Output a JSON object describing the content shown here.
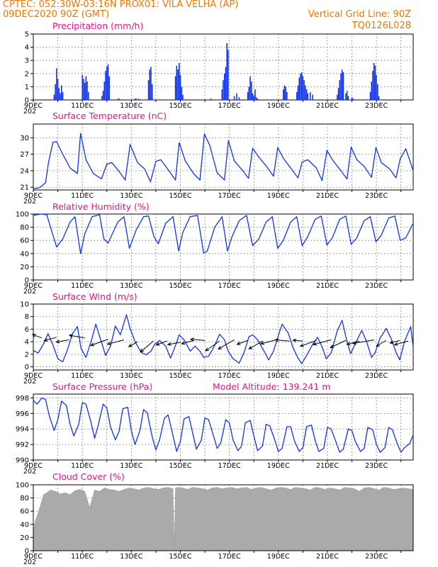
{
  "header": {
    "line1": "CPTEC:   052:30W-03:16N   PROX01: VILA VELHA (AP)",
    "line2": "09DEC2020 90Z (GMT)",
    "grid_note": "Vertical Grid Line: 90Z",
    "code": "TQ0126L028",
    "year_stub": "202"
  },
  "colors": {
    "header": "#ee7700",
    "title": "#ee1188",
    "series": "#1133ee",
    "cloud": "#aaaaaa"
  },
  "chart_data": [
    {
      "type": "bar",
      "title": "Precipitation (mm/h)",
      "ylim": [
        0,
        5
      ],
      "yticks": [
        0,
        1,
        2,
        3,
        4,
        5
      ],
      "xticks": [
        "9DEC",
        "11DEC",
        "13DEC",
        "15DEC",
        "17DEC",
        "19DEC",
        "21DEC",
        "23DEC"
      ],
      "xlim": [
        0,
        15.5
      ],
      "x": [
        0.85,
        0.9,
        0.95,
        1.0,
        1.05,
        1.1,
        1.15,
        1.2,
        2.0,
        2.05,
        2.1,
        2.15,
        2.2,
        2.25,
        2.8,
        2.85,
        2.9,
        2.95,
        3.0,
        3.05,
        3.1,
        3.45,
        3.5,
        4.15,
        4.2,
        4.3,
        4.7,
        4.75,
        4.8,
        4.85,
        5.8,
        5.85,
        5.9,
        5.95,
        6.0,
        6.05,
        6.1,
        7.25,
        7.7,
        7.75,
        7.8,
        7.85,
        7.9,
        7.95,
        8.2,
        8.3,
        8.4,
        8.75,
        8.8,
        8.85,
        8.9,
        8.95,
        9.0,
        9.05,
        9.1,
        9.15,
        10.2,
        10.25,
        10.3,
        10.35,
        10.75,
        10.8,
        10.85,
        10.9,
        10.95,
        11.0,
        11.05,
        11.1,
        11.15,
        11.2,
        11.3,
        11.4,
        12.4,
        12.45,
        12.5,
        12.55,
        12.6,
        12.65,
        12.75,
        12.8,
        12.85,
        13.0,
        13.05,
        13.75,
        13.8,
        13.85,
        13.9,
        13.95,
        14.0,
        14.05,
        14.1
      ],
      "values": [
        0.4,
        1.2,
        2.4,
        1.6,
        0.9,
        0.5,
        1.1,
        0.6,
        1.9,
        1.6,
        1.3,
        1.8,
        1.4,
        0.6,
        0.3,
        0.7,
        1.4,
        2.2,
        2.5,
        2.7,
        1.8,
        0.1,
        0.1,
        0.1,
        0.1,
        0.1,
        1.5,
        2.3,
        2.5,
        1.2,
        1.8,
        2.6,
        2.3,
        2.8,
        1.9,
        1.0,
        0.4,
        0.1,
        0.8,
        1.5,
        2.0,
        2.5,
        4.3,
        3.8,
        0.3,
        0.5,
        0.2,
        0.6,
        1.0,
        1.8,
        1.4,
        0.5,
        0.3,
        0.8,
        0.2,
        0.1,
        0.8,
        1.1,
        1.0,
        0.6,
        0.6,
        1.1,
        1.7,
        2.0,
        2.1,
        1.8,
        1.5,
        1.1,
        0.8,
        0.5,
        0.6,
        0.4,
        0.4,
        0.9,
        1.5,
        2.0,
        2.3,
        2.1,
        0.5,
        0.7,
        0.3,
        0.2,
        0.1,
        0.6,
        1.4,
        2.2,
        2.8,
        2.6,
        1.9,
        1.2,
        0.3
      ]
    },
    {
      "type": "line",
      "title": "Surface Temperature (nC)",
      "ylim": [
        20.5,
        32.5
      ],
      "yticks": [
        21,
        24,
        27,
        30
      ],
      "xticks": [
        "9DEC",
        "11DEC",
        "13DEC",
        "15DEC",
        "17DEC",
        "19DEC",
        "21DEC",
        "23DEC"
      ],
      "xlim": [
        0,
        15.5
      ],
      "x": [
        0,
        0.25,
        0.5,
        0.62,
        0.8,
        0.95,
        1.2,
        1.5,
        1.8,
        1.93,
        2.15,
        2.45,
        2.78,
        3.0,
        3.2,
        3.48,
        3.75,
        3.95,
        4.25,
        4.55,
        4.78,
        5.0,
        5.2,
        5.45,
        5.8,
        5.95,
        6.2,
        6.55,
        6.8,
        6.98,
        7.2,
        7.5,
        7.8,
        7.96,
        8.2,
        8.55,
        8.78,
        8.95,
        9.2,
        9.55,
        9.8,
        9.97,
        10.2,
        10.5,
        10.8,
        10.97,
        11.2,
        11.55,
        11.78,
        11.98,
        12.2,
        12.55,
        12.8,
        12.97,
        13.2,
        13.5,
        13.8,
        13.98,
        14.2,
        14.55,
        14.8,
        14.97,
        15.2,
        15.5
      ],
      "values": [
        20.7,
        20.9,
        21.8,
        25.5,
        29.2,
        29.3,
        27.0,
        24.5,
        23.5,
        30.8,
        26.0,
        23.5,
        22.5,
        25.2,
        25.5,
        24.0,
        22.3,
        28.8,
        25.5,
        24.3,
        22.0,
        25.7,
        26.0,
        24.5,
        22.3,
        29.1,
        25.8,
        23.4,
        22.3,
        30.7,
        28.6,
        23.6,
        22.3,
        29.5,
        25.8,
        24.0,
        22.6,
        28.1,
        26.5,
        24.6,
        23.0,
        28.2,
        26.3,
        24.5,
        22.7,
        25.6,
        26.0,
        24.5,
        22.2,
        27.7,
        26.0,
        24.0,
        22.5,
        28.3,
        26.0,
        24.8,
        22.8,
        28.2,
        25.5,
        24.3,
        22.7,
        26.2,
        28.0,
        24.0
      ]
    },
    {
      "type": "line",
      "title": "Relative Humidity (%)",
      "ylim": [
        0,
        100
      ],
      "yticks": [
        0,
        20,
        40,
        60,
        80,
        100
      ],
      "xticks": [
        "9DEC",
        "11DEC",
        "13DEC",
        "15DEC",
        "17DEC",
        "19DEC",
        "21DEC",
        "23DEC"
      ],
      "xlim": [
        0,
        15.5
      ],
      "x": [
        0,
        0.3,
        0.55,
        0.8,
        0.95,
        1.2,
        1.5,
        1.7,
        1.93,
        2.1,
        2.4,
        2.7,
        2.88,
        3.05,
        3.25,
        3.45,
        3.7,
        3.92,
        4.2,
        4.5,
        4.7,
        4.92,
        5.1,
        5.4,
        5.7,
        5.93,
        6.1,
        6.4,
        6.7,
        6.95,
        7.1,
        7.4,
        7.7,
        7.92,
        8.1,
        8.4,
        8.7,
        8.95,
        9.2,
        9.5,
        9.75,
        9.97,
        10.2,
        10.5,
        10.75,
        10.97,
        11.2,
        11.5,
        11.75,
        11.98,
        12.2,
        12.5,
        12.75,
        12.97,
        13.2,
        13.5,
        13.75,
        13.98,
        14.2,
        14.5,
        14.75,
        14.97,
        15.2,
        15.5
      ],
      "values": [
        98,
        100,
        99,
        68,
        50,
        62,
        88,
        96,
        40,
        70,
        96,
        99,
        62,
        56,
        72,
        88,
        96,
        48,
        76,
        96,
        97,
        66,
        55,
        86,
        96,
        44,
        72,
        96,
        98,
        41,
        44,
        80,
        96,
        44,
        65,
        90,
        98,
        52,
        62,
        88,
        96,
        48,
        60,
        88,
        96,
        52,
        66,
        92,
        97,
        53,
        64,
        92,
        97,
        54,
        64,
        90,
        96,
        58,
        68,
        94,
        97,
        60,
        64,
        86
      ]
    },
    {
      "type": "line",
      "title": "Surface Wind (m/s)",
      "ylim": [
        -0.5,
        10
      ],
      "yticks": [
        0,
        2,
        4,
        6,
        8,
        10
      ],
      "xticks": [
        "9DEC",
        "11DEC",
        "13DEC",
        "15DEC",
        "17DEC",
        "19DEC",
        "21DEC",
        "23DEC"
      ],
      "xlim": [
        0,
        15.5
      ],
      "x": [
        0,
        0.2,
        0.45,
        0.6,
        0.8,
        1.0,
        1.2,
        1.4,
        1.6,
        1.8,
        1.95,
        2.15,
        2.4,
        2.55,
        2.75,
        2.95,
        3.15,
        3.35,
        3.55,
        3.8,
        3.95,
        4.15,
        4.4,
        4.6,
        4.8,
        4.95,
        5.15,
        5.4,
        5.6,
        5.8,
        5.95,
        6.15,
        6.4,
        6.6,
        6.8,
        6.95,
        7.15,
        7.4,
        7.6,
        7.8,
        7.95,
        8.15,
        8.4,
        8.6,
        8.8,
        8.95,
        9.15,
        9.4,
        9.6,
        9.8,
        9.95,
        10.15,
        10.4,
        10.6,
        10.8,
        10.95,
        11.15,
        11.4,
        11.6,
        11.8,
        11.95,
        12.15,
        12.4,
        12.6,
        12.8,
        12.95,
        13.15,
        13.4,
        13.6,
        13.8,
        13.95,
        14.15,
        14.4,
        14.6,
        14.8,
        14.95,
        15.15,
        15.4,
        15.5
      ],
      "values": [
        2.6,
        2.2,
        3.9,
        5.3,
        3.5,
        1.3,
        0.8,
        2.8,
        5.3,
        6.4,
        2.9,
        1.5,
        4.6,
        6.8,
        4.3,
        1.8,
        3.3,
        6.5,
        5.1,
        8.3,
        6.1,
        4.0,
        2.3,
        1.9,
        2.5,
        3.6,
        4.2,
        3.3,
        1.4,
        3.4,
        5.1,
        4.3,
        2.5,
        3.3,
        2.5,
        1.5,
        1.7,
        3.4,
        5.2,
        4.3,
        2.5,
        1.3,
        0.6,
        2.3,
        4.8,
        5.1,
        4.3,
        2.6,
        1.1,
        2.5,
        4.4,
        6.8,
        5.4,
        3.0,
        1.4,
        0.5,
        1.8,
        3.6,
        4.7,
        3.0,
        1.3,
        2.2,
        5.7,
        7.4,
        4.0,
        2.1,
        3.8,
        5.8,
        4.0,
        1.5,
        2.3,
        4.6,
        6.1,
        4.5,
        2.3,
        1.1,
        4.1,
        6.4,
        3.1
      ],
      "arrows": {
        "x": [
          0.35,
          0.95,
          1.45,
          2.1,
          3.05,
          3.7,
          4.25,
          4.9,
          5.45,
          6.0,
          6.55,
          7.0,
          7.6,
          8.2,
          8.75,
          9.35,
          9.9,
          10.45,
          11.0,
          11.55,
          12.15,
          12.75,
          13.3,
          13.9,
          14.4,
          14.95,
          15.3
        ],
        "y": [
          4.6,
          4.7,
          4.3,
          4.6,
          4.4,
          4.3,
          4.0,
          4.1,
          4.1,
          3.9,
          4.2,
          4.2,
          4.1,
          4.3,
          4.2,
          4.1,
          4.3,
          4.1,
          4.1,
          4.2,
          4.3,
          4.2,
          4.1,
          4.3,
          4.2,
          4.2,
          4.1
        ],
        "dir": [
          160,
          -165,
          -170,
          170,
          -160,
          -165,
          -150,
          -140,
          -160,
          -170,
          -165,
          175,
          -145,
          -150,
          -160,
          -150,
          -165,
          175,
          175,
          -160,
          -165,
          -155,
          -165,
          -170,
          -150,
          -165,
          -165
        ],
        "len": [
          14,
          18,
          18,
          22,
          26,
          24,
          14,
          24,
          16,
          18,
          18,
          20,
          24,
          26,
          16,
          22,
          22,
          20,
          14,
          24,
          26,
          24,
          18,
          30,
          16,
          14,
          20
        ]
      }
    },
    {
      "type": "line",
      "title": "Surface Pressure (hPa)",
      "annotation": "Model Altitude: 139.241  m",
      "ylim": [
        990,
        998.5
      ],
      "yticks": [
        990,
        992,
        994,
        996,
        998
      ],
      "xticks": [
        "9DEC",
        "11DEC",
        "13DEC",
        "15DEC",
        "17DEC",
        "19DEC",
        "21DEC",
        "23DEC"
      ],
      "xlim": [
        0,
        15.5
      ],
      "x": [
        0,
        0.15,
        0.35,
        0.5,
        0.65,
        0.85,
        1.0,
        1.15,
        1.35,
        1.5,
        1.65,
        1.85,
        2.0,
        2.15,
        2.35,
        2.5,
        2.65,
        2.85,
        3.0,
        3.15,
        3.35,
        3.5,
        3.65,
        3.85,
        4.0,
        4.15,
        4.35,
        4.5,
        4.65,
        4.85,
        5.0,
        5.15,
        5.35,
        5.5,
        5.65,
        5.85,
        6.0,
        6.15,
        6.35,
        6.5,
        6.65,
        6.85,
        7.0,
        7.15,
        7.35,
        7.5,
        7.65,
        7.85,
        8.0,
        8.15,
        8.35,
        8.5,
        8.65,
        8.85,
        9.0,
        9.15,
        9.35,
        9.5,
        9.65,
        9.85,
        10.0,
        10.15,
        10.35,
        10.5,
        10.65,
        10.85,
        11.0,
        11.15,
        11.35,
        11.5,
        11.65,
        11.85,
        12.0,
        12.15,
        12.35,
        12.5,
        12.65,
        12.85,
        13.0,
        13.15,
        13.35,
        13.5,
        13.65,
        13.85,
        14.0,
        14.15,
        14.35,
        14.5,
        14.65,
        14.85,
        15.0,
        15.15,
        15.35,
        15.5
      ],
      "values": [
        997.7,
        997.2,
        998.0,
        997.8,
        995.7,
        993.8,
        995.2,
        997.6,
        997.0,
        994.6,
        993.1,
        994.6,
        997.4,
        997.2,
        994.9,
        992.8,
        994.5,
        997.2,
        996.7,
        994.3,
        992.6,
        993.7,
        996.6,
        996.8,
        993.8,
        992.0,
        993.8,
        996.5,
        996.1,
        993.0,
        991.3,
        992.6,
        995.4,
        995.8,
        993.8,
        991.1,
        992.4,
        995.3,
        995.6,
        993.5,
        991.4,
        992.5,
        995.4,
        995.2,
        993.1,
        991.5,
        992.2,
        995.2,
        994.8,
        992.6,
        991.2,
        991.8,
        994.8,
        995.1,
        993.1,
        991.2,
        991.8,
        994.6,
        994.4,
        992.6,
        991.1,
        991.5,
        994.3,
        994.3,
        992.5,
        991.1,
        991.6,
        994.3,
        994.5,
        992.5,
        991.1,
        991.5,
        994.2,
        994.0,
        992.3,
        991.0,
        991.4,
        994.0,
        993.8,
        992.3,
        991.1,
        991.5,
        994.2,
        993.9,
        992.0,
        991.0,
        991.6,
        994.2,
        993.9,
        992.1,
        991.0,
        991.6,
        992.1,
        993.2
      ]
    },
    {
      "type": "area",
      "title": "Cloud Cover (%)",
      "ylim": [
        0,
        100
      ],
      "yticks": [
        0,
        20,
        40,
        60,
        80,
        100
      ],
      "xticks": [
        "9DEC",
        "11DEC",
        "13DEC",
        "15DEC",
        "17DEC",
        "19DEC",
        "21DEC",
        "23DEC"
      ],
      "xlim": [
        0,
        15.5
      ],
      "x": [
        0,
        0.08,
        0.18,
        0.3,
        0.42,
        0.55,
        0.7,
        0.9,
        1.1,
        1.3,
        1.5,
        1.7,
        1.9,
        2.1,
        2.3,
        2.5,
        2.7,
        2.9,
        3.1,
        3.3,
        3.5,
        3.7,
        3.9,
        4.1,
        4.3,
        4.5,
        4.7,
        4.9,
        5.1,
        5.3,
        5.5,
        5.7,
        5.75,
        5.8,
        5.9,
        6.1,
        6.3,
        6.5,
        6.7,
        6.9,
        7.1,
        7.3,
        7.5,
        7.7,
        7.9,
        8.1,
        8.3,
        8.5,
        8.7,
        8.9,
        9.1,
        9.3,
        9.5,
        9.7,
        9.9,
        10.1,
        10.3,
        10.5,
        10.7,
        10.9,
        11.1,
        11.3,
        11.5,
        11.7,
        11.9,
        12.1,
        12.3,
        12.5,
        12.7,
        12.9,
        13.1,
        13.3,
        13.5,
        13.7,
        13.9,
        14.1,
        14.3,
        14.5,
        14.7,
        14.9,
        15.1,
        15.3,
        15.5
      ],
      "values": [
        30,
        45,
        55,
        70,
        85,
        88,
        92,
        90,
        86,
        88,
        85,
        91,
        93,
        90,
        65,
        92,
        90,
        95,
        93,
        92,
        90,
        93,
        95,
        94,
        92,
        95,
        96,
        94,
        93,
        95,
        96,
        94,
        2,
        95,
        96,
        95,
        93,
        96,
        95,
        94,
        92,
        95,
        96,
        94,
        95,
        96,
        94,
        95,
        96,
        93,
        95,
        96,
        94,
        92,
        95,
        96,
        95,
        93,
        96,
        95,
        94,
        92,
        96,
        95,
        93,
        95,
        94,
        92,
        96,
        95,
        94,
        90,
        95,
        96,
        94,
        92,
        96,
        95,
        93,
        94,
        95,
        94,
        93
      ]
    }
  ]
}
